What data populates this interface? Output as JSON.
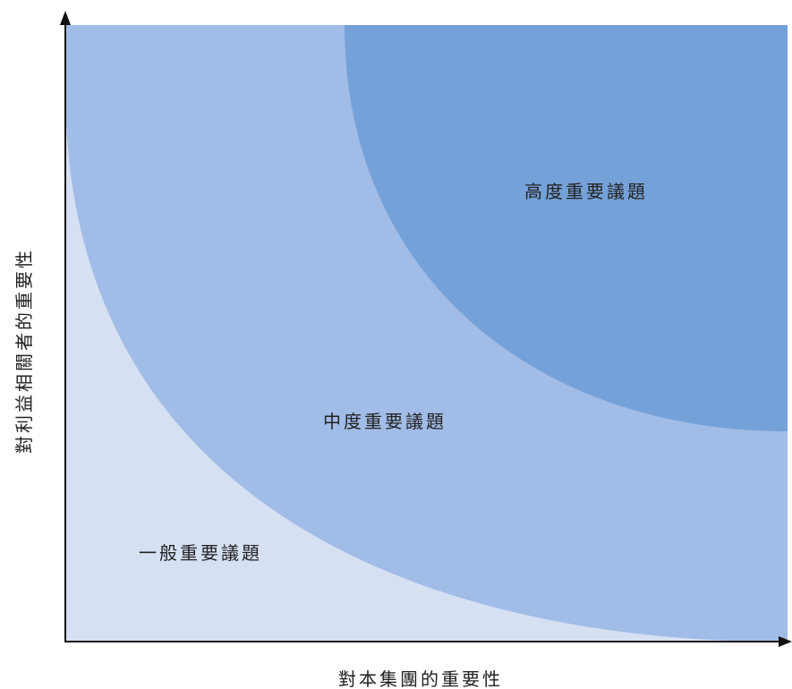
{
  "zones": {
    "high": {
      "label": "高度重要議題",
      "color": "#75a1d9"
    },
    "medium": {
      "label": "中度重要議題",
      "color": "#a1bce6"
    },
    "low": {
      "label": "一般重要議題",
      "color": "#d6e0f3"
    }
  },
  "axes": {
    "x_label": "對本集團的重要性",
    "y_label": "對利益相關者的重要性",
    "color": "#111111"
  }
}
